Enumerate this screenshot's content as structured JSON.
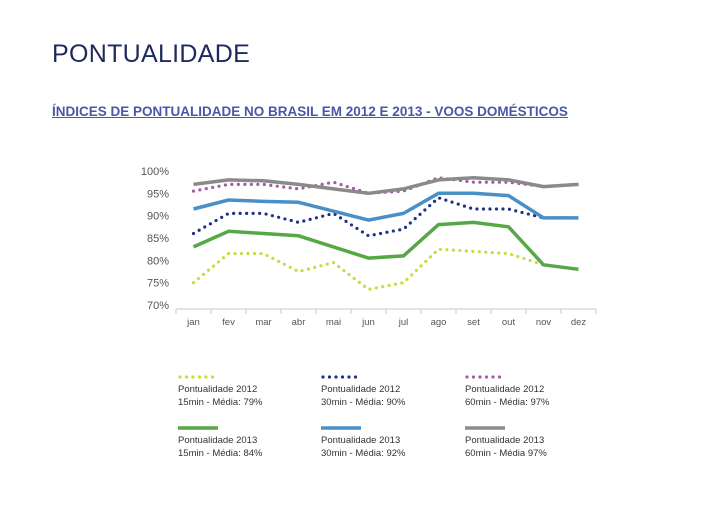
{
  "page": {
    "title": "PONTUALIDADE",
    "subtitle": "ÍNDICES DE PONTUALIDADE NO BRASIL EM 2012 E 2013 - VOOS DOMÉSTICOS"
  },
  "chart_data": {
    "type": "line",
    "title": "",
    "xlabel": "",
    "ylabel": "",
    "categories": [
      "jan",
      "fev",
      "mar",
      "abr",
      "mai",
      "jun",
      "jul",
      "ago",
      "set",
      "out",
      "nov",
      "dez"
    ],
    "y_ticks": [
      "70%",
      "75%",
      "80%",
      "85%",
      "90%",
      "95%",
      "100%"
    ],
    "ylim": [
      70,
      100
    ],
    "grid": false,
    "legend_position": "bottom",
    "series": [
      {
        "name": "Pontualidade 2012",
        "detail": "15min - Média: 79%",
        "color": "#c8dc3c",
        "style": "dotted",
        "values": [
          75,
          81.5,
          81.5,
          77.5,
          79.5,
          73.5,
          75,
          82.5,
          82,
          81.5,
          79,
          78
        ]
      },
      {
        "name": "Pontualidade 2012",
        "detail": "30min - Média: 90%",
        "color": "#1f2f8a",
        "style": "dotted",
        "values": [
          86,
          90.5,
          90.5,
          88.5,
          90.5,
          85.5,
          87,
          94,
          91.5,
          91.5,
          89.5,
          89.5
        ]
      },
      {
        "name": "Pontualidade 2012",
        "detail": "60min - Média: 97%",
        "color": "#a45aa8",
        "style": "dotted",
        "values": [
          95.5,
          97,
          97,
          96,
          97.5,
          95,
          95.5,
          98.5,
          97.5,
          97.5,
          96.5,
          97
        ]
      },
      {
        "name": "Pontualidade 2013",
        "detail": "15min - Média: 84%",
        "color": "#56a846",
        "style": "solid",
        "values": [
          83,
          86.5,
          86,
          85.5,
          83,
          80.5,
          81,
          88,
          88.5,
          87.5,
          79,
          78
        ]
      },
      {
        "name": "Pontualidade 2013",
        "detail": "30min - Média: 92%",
        "color": "#4a90c8",
        "style": "solid",
        "values": [
          91.5,
          93.5,
          93.2,
          93,
          91,
          89,
          90.5,
          95,
          95,
          94.5,
          89.5,
          89.5
        ]
      },
      {
        "name": "Pontualidade 2013",
        "detail": "60min - Média 97%",
        "color": "#8a8a8a",
        "style": "solid",
        "values": [
          97,
          98,
          97.8,
          97,
          96,
          95,
          96,
          98,
          98.5,
          98,
          96.5,
          97
        ]
      }
    ]
  }
}
